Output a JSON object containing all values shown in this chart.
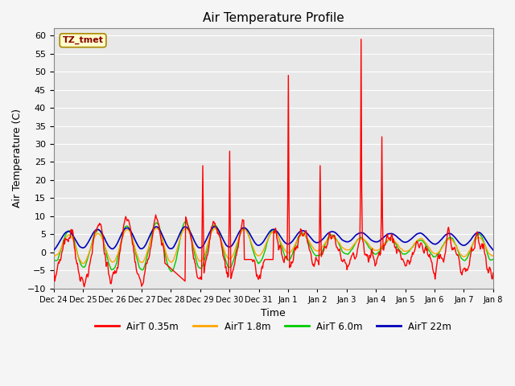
{
  "title": "Air Temperature Profile",
  "xlabel": "Time",
  "ylabel": "Air Temperature (C)",
  "ylim": [
    -10,
    62
  ],
  "yticks": [
    -10,
    -5,
    0,
    5,
    10,
    15,
    20,
    25,
    30,
    35,
    40,
    45,
    50,
    55,
    60
  ],
  "legend_labels": [
    "AirT 0.35m",
    "AirT 1.8m",
    "AirT 6.0m",
    "AirT 22m"
  ],
  "legend_colors": [
    "#ff0000",
    "#ffa500",
    "#00cc00",
    "#0000bb"
  ],
  "annotation_text": "TZ_tmet",
  "tick_labels": [
    "Dec 24",
    "Dec 25",
    "Dec 26",
    "Dec 27",
    "Dec 28",
    "Dec 29",
    "Dec 30",
    "Dec 31",
    "Jan 1",
    "Jan 2",
    "Jan 3",
    "Jan 4",
    "Jan 5",
    "Jan 6",
    "Jan 7",
    "Jan 8"
  ],
  "n_points": 720,
  "total_days": 15
}
